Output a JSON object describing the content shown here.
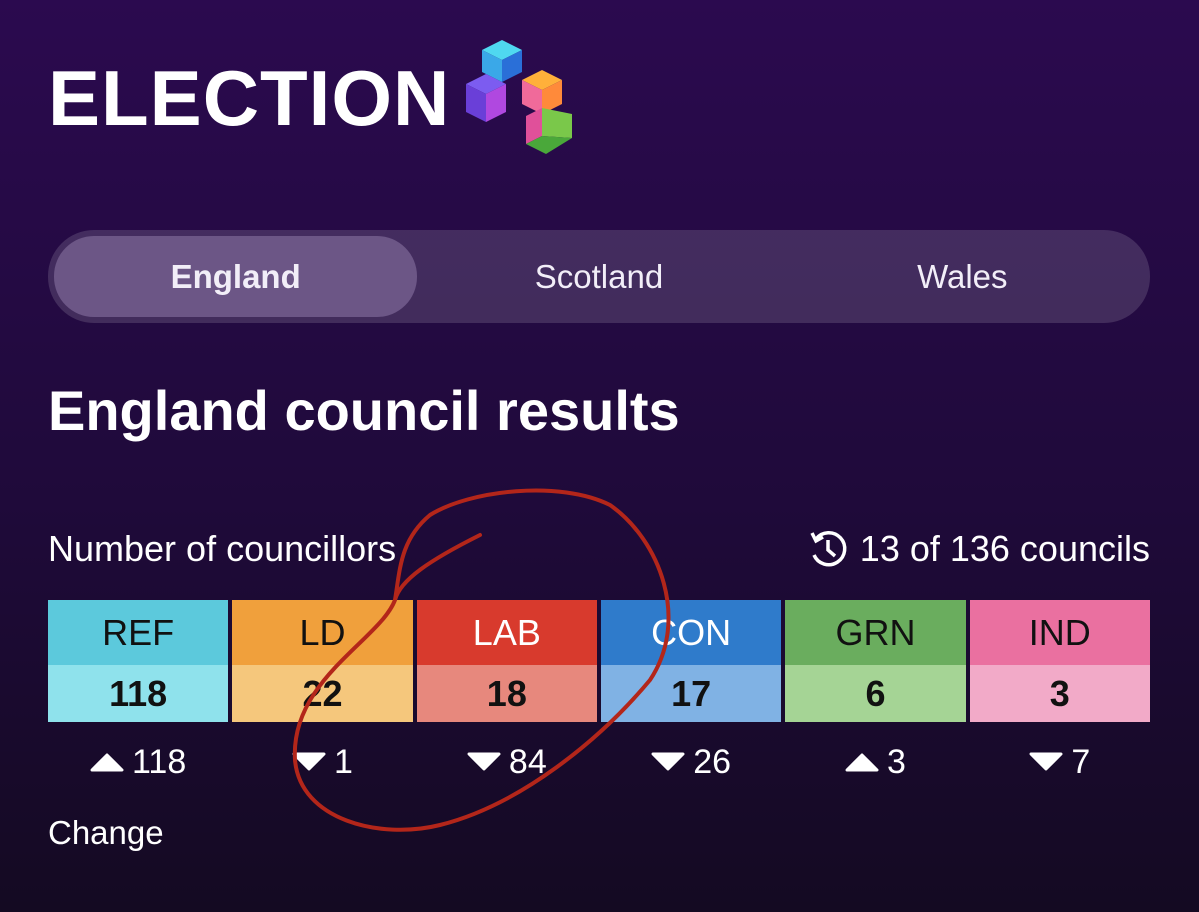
{
  "header": {
    "title": "ELECTION"
  },
  "tabs": {
    "items": [
      "England",
      "Scotland",
      "Wales"
    ],
    "active": 0
  },
  "heading": "England council results",
  "results": {
    "label": "Number of councillors",
    "progress": "13 of 136 councils",
    "change_label": "Change",
    "parties": [
      {
        "name": "REF",
        "seats": 118,
        "change": 118,
        "direction": "up",
        "color": "#5cc9dc",
        "light": "#8fe2ec",
        "text": "#111111"
      },
      {
        "name": "LD",
        "seats": 22,
        "change": 1,
        "direction": "down",
        "color": "#f0a03c",
        "light": "#f5c77c",
        "text": "#111111"
      },
      {
        "name": "LAB",
        "seats": 18,
        "change": 84,
        "direction": "down",
        "color": "#d83a2d",
        "light": "#e7887d",
        "text": "#ffffff"
      },
      {
        "name": "CON",
        "seats": 17,
        "change": 26,
        "direction": "down",
        "color": "#2f7bcb",
        "light": "#80b2e4",
        "text": "#ffffff"
      },
      {
        "name": "GRN",
        "seats": 6,
        "change": 3,
        "direction": "up",
        "color": "#6aad5e",
        "light": "#a5d495",
        "text": "#111111"
      },
      {
        "name": "IND",
        "seats": 3,
        "change": 7,
        "direction": "down",
        "color": "#ea70a0",
        "light": "#f2aac8",
        "text": "#111111"
      }
    ]
  }
}
